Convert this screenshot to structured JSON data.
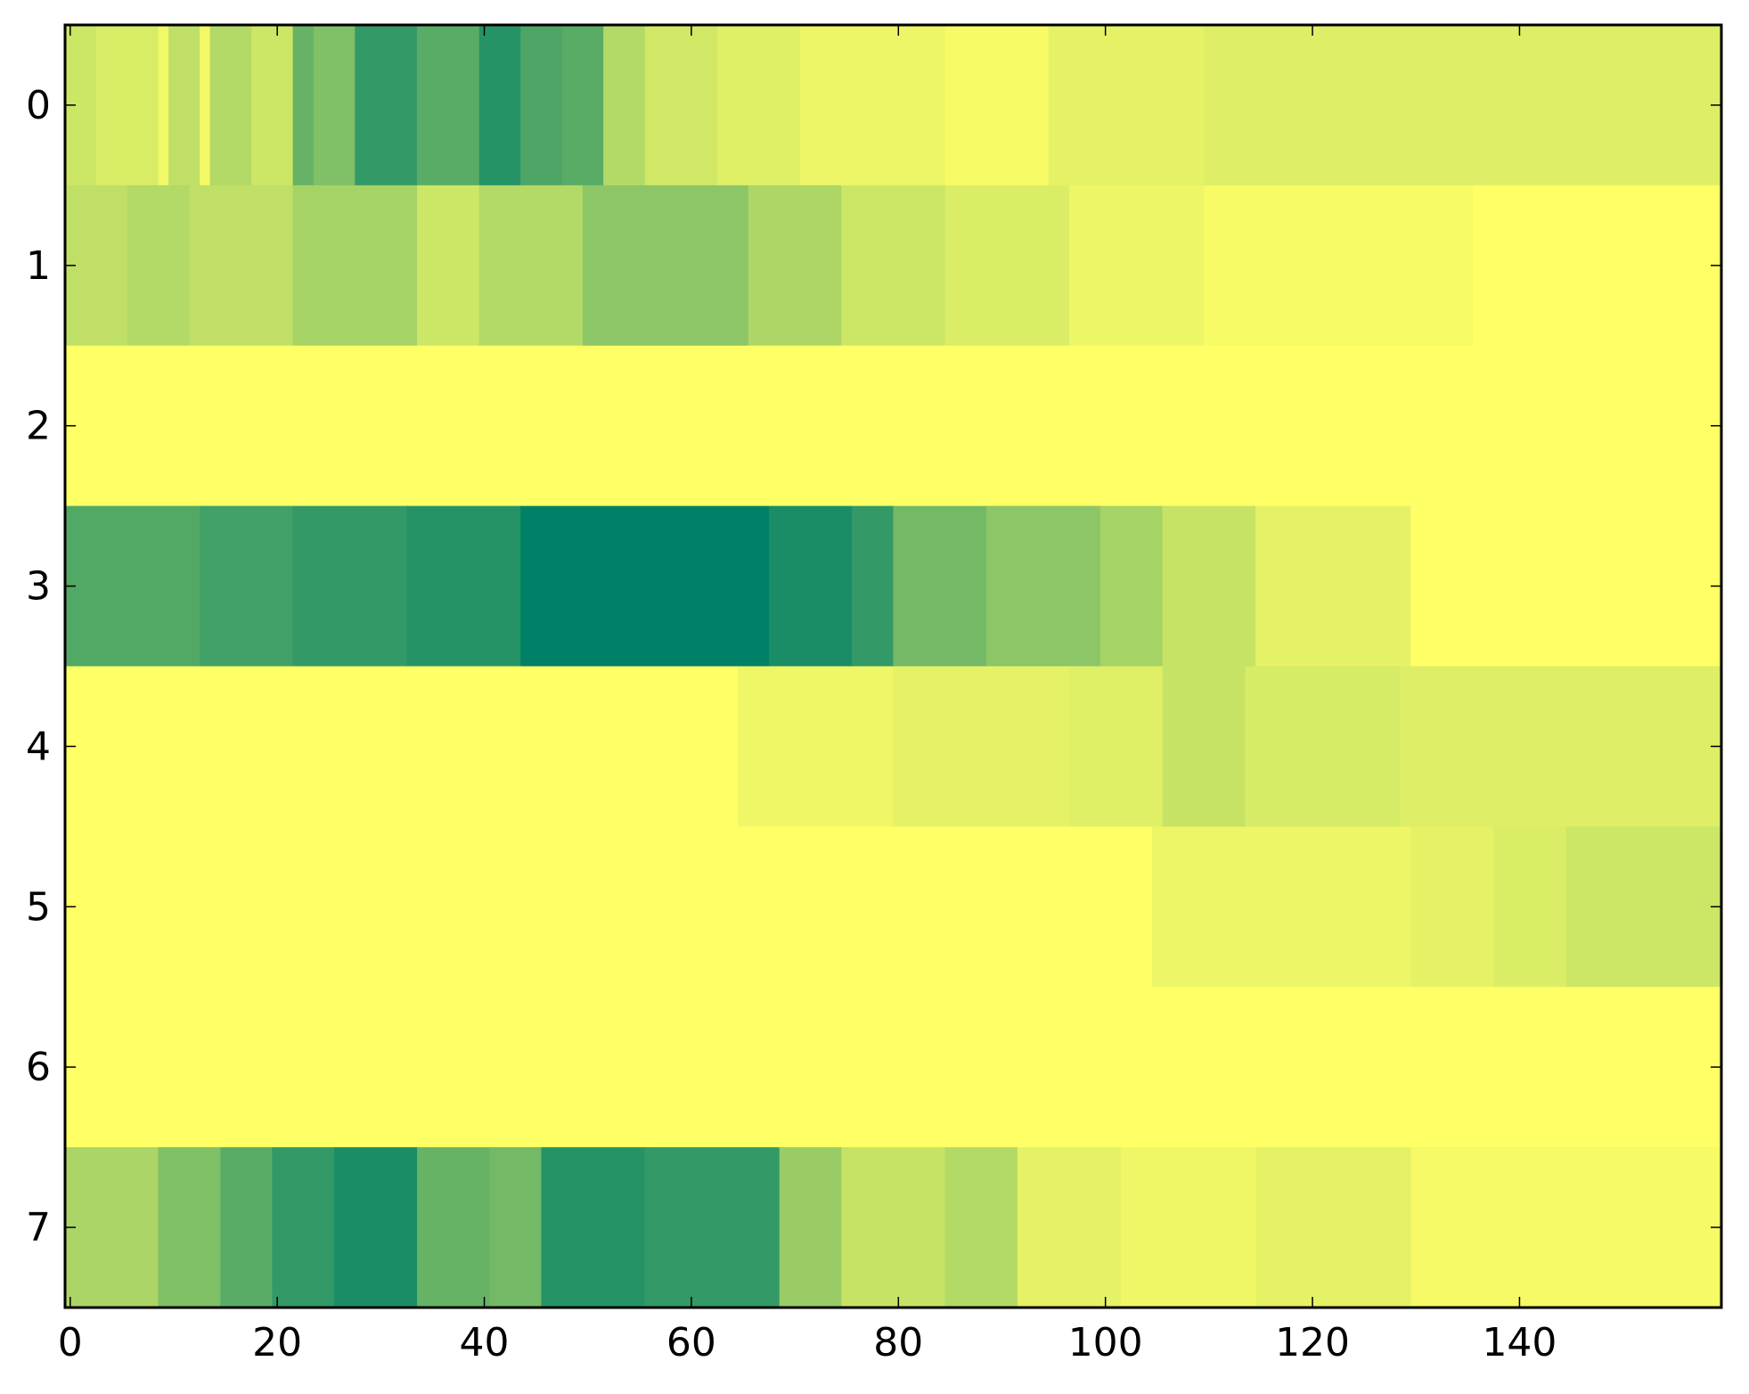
{
  "chart_data": {
    "type": "heatmap",
    "title": "",
    "xlabel": "",
    "ylabel": "",
    "colormap": "summer_r",
    "colorscale": [
      "#ffff66",
      "#008066"
    ],
    "value_range": [
      0,
      1
    ],
    "x_range": [
      -0.5,
      159.5
    ],
    "y_range": [
      -0.5,
      7.5
    ],
    "x_ticks": [
      0,
      20,
      40,
      60,
      80,
      100,
      120,
      140
    ],
    "x_tick_labels": [
      "0",
      "20",
      "40",
      "60",
      "80",
      "100",
      "120",
      "140"
    ],
    "y_ticks": [
      0,
      1,
      2,
      3,
      4,
      5,
      6,
      7
    ],
    "y_tick_labels": [
      "0",
      "1",
      "2",
      "3",
      "4",
      "5",
      "6",
      "7"
    ],
    "grid": false,
    "legend": "none",
    "n_columns": 160,
    "rows": [
      {
        "row": 0,
        "segments": [
          {
            "from": 0,
            "to": 2,
            "value": 0.2
          },
          {
            "from": 3,
            "to": 8,
            "value": 0.15
          },
          {
            "from": 9,
            "to": 9,
            "value": 0.05
          },
          {
            "from": 10,
            "to": 12,
            "value": 0.25
          },
          {
            "from": 13,
            "to": 13,
            "value": 0.05
          },
          {
            "from": 14,
            "to": 17,
            "value": 0.3
          },
          {
            "from": 18,
            "to": 21,
            "value": 0.2
          },
          {
            "from": 22,
            "to": 23,
            "value": 0.6
          },
          {
            "from": 24,
            "to": 27,
            "value": 0.5
          },
          {
            "from": 28,
            "to": 33,
            "value": 0.8
          },
          {
            "from": 34,
            "to": 39,
            "value": 0.65
          },
          {
            "from": 40,
            "to": 43,
            "value": 0.85
          },
          {
            "from": 44,
            "to": 47,
            "value": 0.7
          },
          {
            "from": 48,
            "to": 51,
            "value": 0.65
          },
          {
            "from": 52,
            "to": 55,
            "value": 0.3
          },
          {
            "from": 56,
            "to": 62,
            "value": 0.18
          },
          {
            "from": 63,
            "to": 70,
            "value": 0.12
          },
          {
            "from": 71,
            "to": 84,
            "value": 0.07
          },
          {
            "from": 85,
            "to": 94,
            "value": 0.03
          },
          {
            "from": 95,
            "to": 109,
            "value": 0.1
          },
          {
            "from": 110,
            "to": 159,
            "value": 0.13
          }
        ]
      },
      {
        "row": 1,
        "segments": [
          {
            "from": 0,
            "to": 5,
            "value": 0.25
          },
          {
            "from": 6,
            "to": 11,
            "value": 0.3
          },
          {
            "from": 12,
            "to": 21,
            "value": 0.25
          },
          {
            "from": 22,
            "to": 33,
            "value": 0.35
          },
          {
            "from": 34,
            "to": 39,
            "value": 0.2
          },
          {
            "from": 40,
            "to": 49,
            "value": 0.3
          },
          {
            "from": 50,
            "to": 65,
            "value": 0.45
          },
          {
            "from": 66,
            "to": 74,
            "value": 0.32
          },
          {
            "from": 75,
            "to": 84,
            "value": 0.2
          },
          {
            "from": 85,
            "to": 96,
            "value": 0.14
          },
          {
            "from": 97,
            "to": 109,
            "value": 0.07
          },
          {
            "from": 110,
            "to": 135,
            "value": 0.03
          },
          {
            "from": 136,
            "to": 159,
            "value": 0.0
          }
        ]
      },
      {
        "row": 2,
        "segments": [
          {
            "from": 0,
            "to": 159,
            "value": 0.0
          }
        ]
      },
      {
        "row": 3,
        "segments": [
          {
            "from": 0,
            "to": 12,
            "value": 0.68
          },
          {
            "from": 13,
            "to": 21,
            "value": 0.74
          },
          {
            "from": 22,
            "to": 32,
            "value": 0.8
          },
          {
            "from": 33,
            "to": 43,
            "value": 0.85
          },
          {
            "from": 44,
            "to": 67,
            "value": 1.0
          },
          {
            "from": 68,
            "to": 75,
            "value": 0.9
          },
          {
            "from": 76,
            "to": 79,
            "value": 0.8
          },
          {
            "from": 80,
            "to": 88,
            "value": 0.55
          },
          {
            "from": 89,
            "to": 99,
            "value": 0.45
          },
          {
            "from": 100,
            "to": 105,
            "value": 0.35
          },
          {
            "from": 106,
            "to": 114,
            "value": 0.22
          },
          {
            "from": 115,
            "to": 129,
            "value": 0.1
          },
          {
            "from": 130,
            "to": 159,
            "value": 0.0
          }
        ]
      },
      {
        "row": 4,
        "segments": [
          {
            "from": 0,
            "to": 64,
            "value": 0.0
          },
          {
            "from": 65,
            "to": 79,
            "value": 0.06
          },
          {
            "from": 80,
            "to": 96,
            "value": 0.1
          },
          {
            "from": 97,
            "to": 105,
            "value": 0.12
          },
          {
            "from": 106,
            "to": 113,
            "value": 0.22
          },
          {
            "from": 114,
            "to": 128,
            "value": 0.16
          },
          {
            "from": 129,
            "to": 159,
            "value": 0.13
          }
        ]
      },
      {
        "row": 5,
        "segments": [
          {
            "from": 0,
            "to": 104,
            "value": 0.0
          },
          {
            "from": 105,
            "to": 129,
            "value": 0.07
          },
          {
            "from": 130,
            "to": 137,
            "value": 0.1
          },
          {
            "from": 138,
            "to": 144,
            "value": 0.14
          },
          {
            "from": 145,
            "to": 159,
            "value": 0.2
          }
        ]
      },
      {
        "row": 6,
        "segments": [
          {
            "from": 0,
            "to": 159,
            "value": 0.0
          }
        ]
      },
      {
        "row": 7,
        "segments": [
          {
            "from": 0,
            "to": 8,
            "value": 0.33
          },
          {
            "from": 9,
            "to": 14,
            "value": 0.5
          },
          {
            "from": 15,
            "to": 19,
            "value": 0.65
          },
          {
            "from": 20,
            "to": 25,
            "value": 0.8
          },
          {
            "from": 26,
            "to": 33,
            "value": 0.9
          },
          {
            "from": 34,
            "to": 40,
            "value": 0.6
          },
          {
            "from": 41,
            "to": 45,
            "value": 0.55
          },
          {
            "from": 46,
            "to": 55,
            "value": 0.85
          },
          {
            "from": 56,
            "to": 68,
            "value": 0.8
          },
          {
            "from": 69,
            "to": 74,
            "value": 0.4
          },
          {
            "from": 75,
            "to": 84,
            "value": 0.22
          },
          {
            "from": 85,
            "to": 91,
            "value": 0.3
          },
          {
            "from": 92,
            "to": 101,
            "value": 0.1
          },
          {
            "from": 102,
            "to": 114,
            "value": 0.06
          },
          {
            "from": 115,
            "to": 129,
            "value": 0.1
          },
          {
            "from": 130,
            "to": 159,
            "value": 0.04
          }
        ]
      }
    ]
  }
}
